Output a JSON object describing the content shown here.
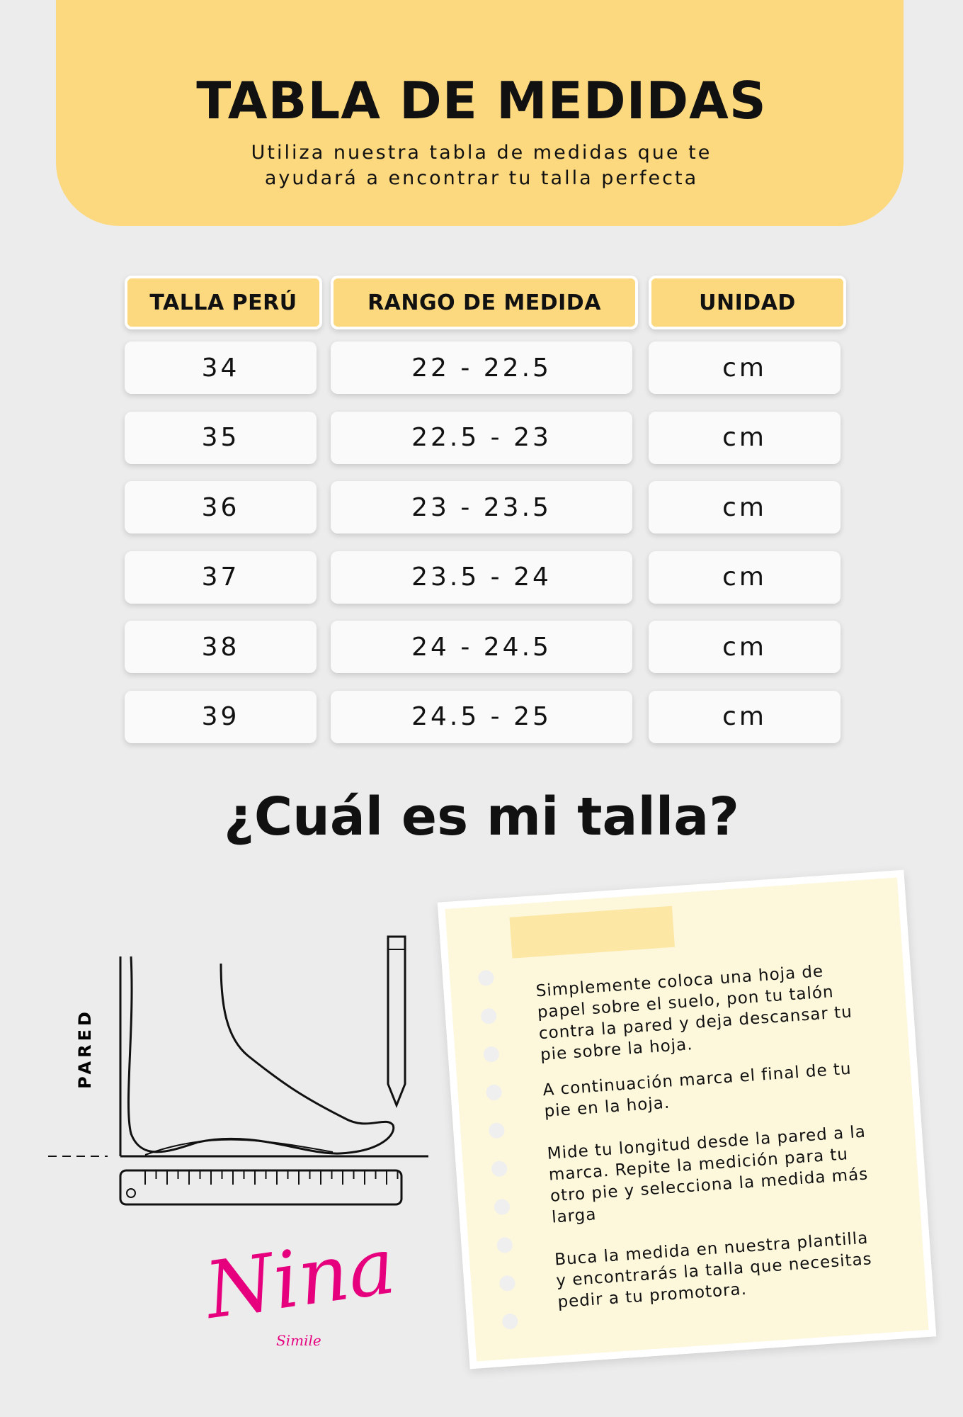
{
  "header": {
    "title": "TABLA DE MEDIDAS",
    "subtitle": [
      "Utiliza nuestra tabla de medidas que te",
      "ayudará a encontrar tu talla perfecta"
    ]
  },
  "table": {
    "headers": [
      "TALLA PERÚ",
      "RANGO DE MEDIDA",
      "UNIDAD"
    ],
    "rows": [
      [
        "34",
        "22 - 22.5",
        "cm"
      ],
      [
        "35",
        "22.5 - 23",
        "cm"
      ],
      [
        "36",
        "23 - 23.5",
        "cm"
      ],
      [
        "37",
        "23.5 - 24",
        "cm"
      ],
      [
        "38",
        "24 - 24.5",
        "cm"
      ],
      [
        "39",
        "24.5 - 25",
        "cm"
      ]
    ]
  },
  "section": {
    "title": "¿Cuál es mi talla?"
  },
  "diagram": {
    "wall_label": "PARED"
  },
  "note": {
    "paragraphs": [
      "Simplemente coloca una hoja de papel sobre el suelo, pon tu talón contra la pared y deja descansar tu pie sobre la hoja.",
      "A continuación marca el final de tu pie en la hoja.",
      "Mide tu longitud desde la pared a la marca. Repite la medición para tu otro pie y selecciona la medida más larga",
      "Buca la medida en nuestra plantilla y encontrarás la talla que necesitas pedir a tu promotora."
    ]
  },
  "brand": {
    "name": "Nina",
    "tagline": "Simile"
  }
}
